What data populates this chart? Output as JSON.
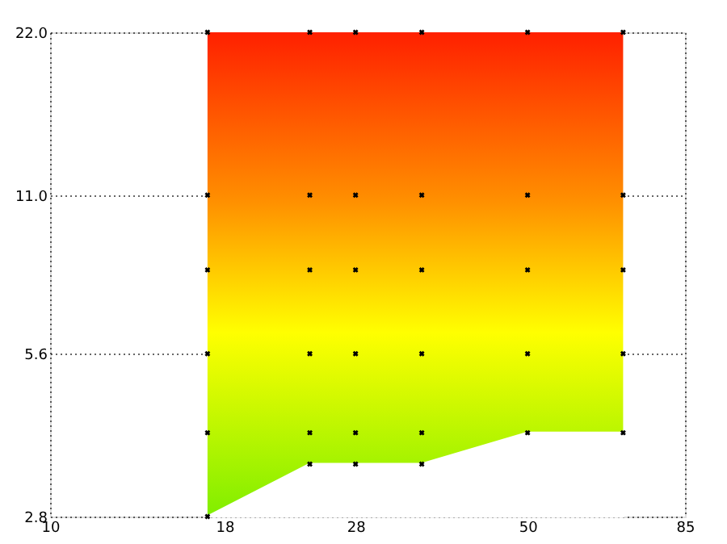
{
  "chart_data": {
    "type": "scatter",
    "log": "xy",
    "grid": true,
    "xlim": [
      10,
      85
    ],
    "xticks": [
      10,
      18,
      28,
      50,
      85
    ],
    "ylim": [
      2.8,
      22
    ],
    "yticks": [
      2.8,
      5.6,
      {
        "value": 11,
        "label": "11.0"
      },
      {
        "value": 22,
        "label": "22.0"
      }
    ],
    "bands": [
      {
        "axis": "x",
        "from": 17,
        "to": 69,
        "color": "#ffff00"
      }
    ],
    "series": [
      {
        "type": "area",
        "color": "#ffffff",
        "x": [
          17,
          24,
          35,
          50,
          69
        ],
        "values": [
          2.8,
          3.5,
          3.5,
          4.0,
          4.0
        ]
      },
      {
        "color": "#000000",
        "marker": "cross",
        "x": [
          17,
          17,
          17,
          17,
          17,
          17,
          24,
          24,
          24,
          24,
          24,
          24,
          28,
          28,
          28,
          28,
          28,
          28,
          35,
          35,
          35,
          35,
          35,
          35,
          50,
          50,
          50,
          50,
          50,
          69,
          69,
          69,
          69,
          69
        ],
        "values": [
          22,
          11,
          8,
          5.6,
          4.0,
          2.8,
          22,
          11,
          8,
          5.6,
          4.0,
          3.5,
          22,
          11,
          8,
          5.6,
          4.0,
          3.5,
          22,
          11,
          8,
          5.6,
          4.0,
          3.5,
          22,
          11,
          8,
          5.6,
          4.0,
          22,
          11,
          8,
          5.6,
          4.0
        ]
      }
    ]
  }
}
